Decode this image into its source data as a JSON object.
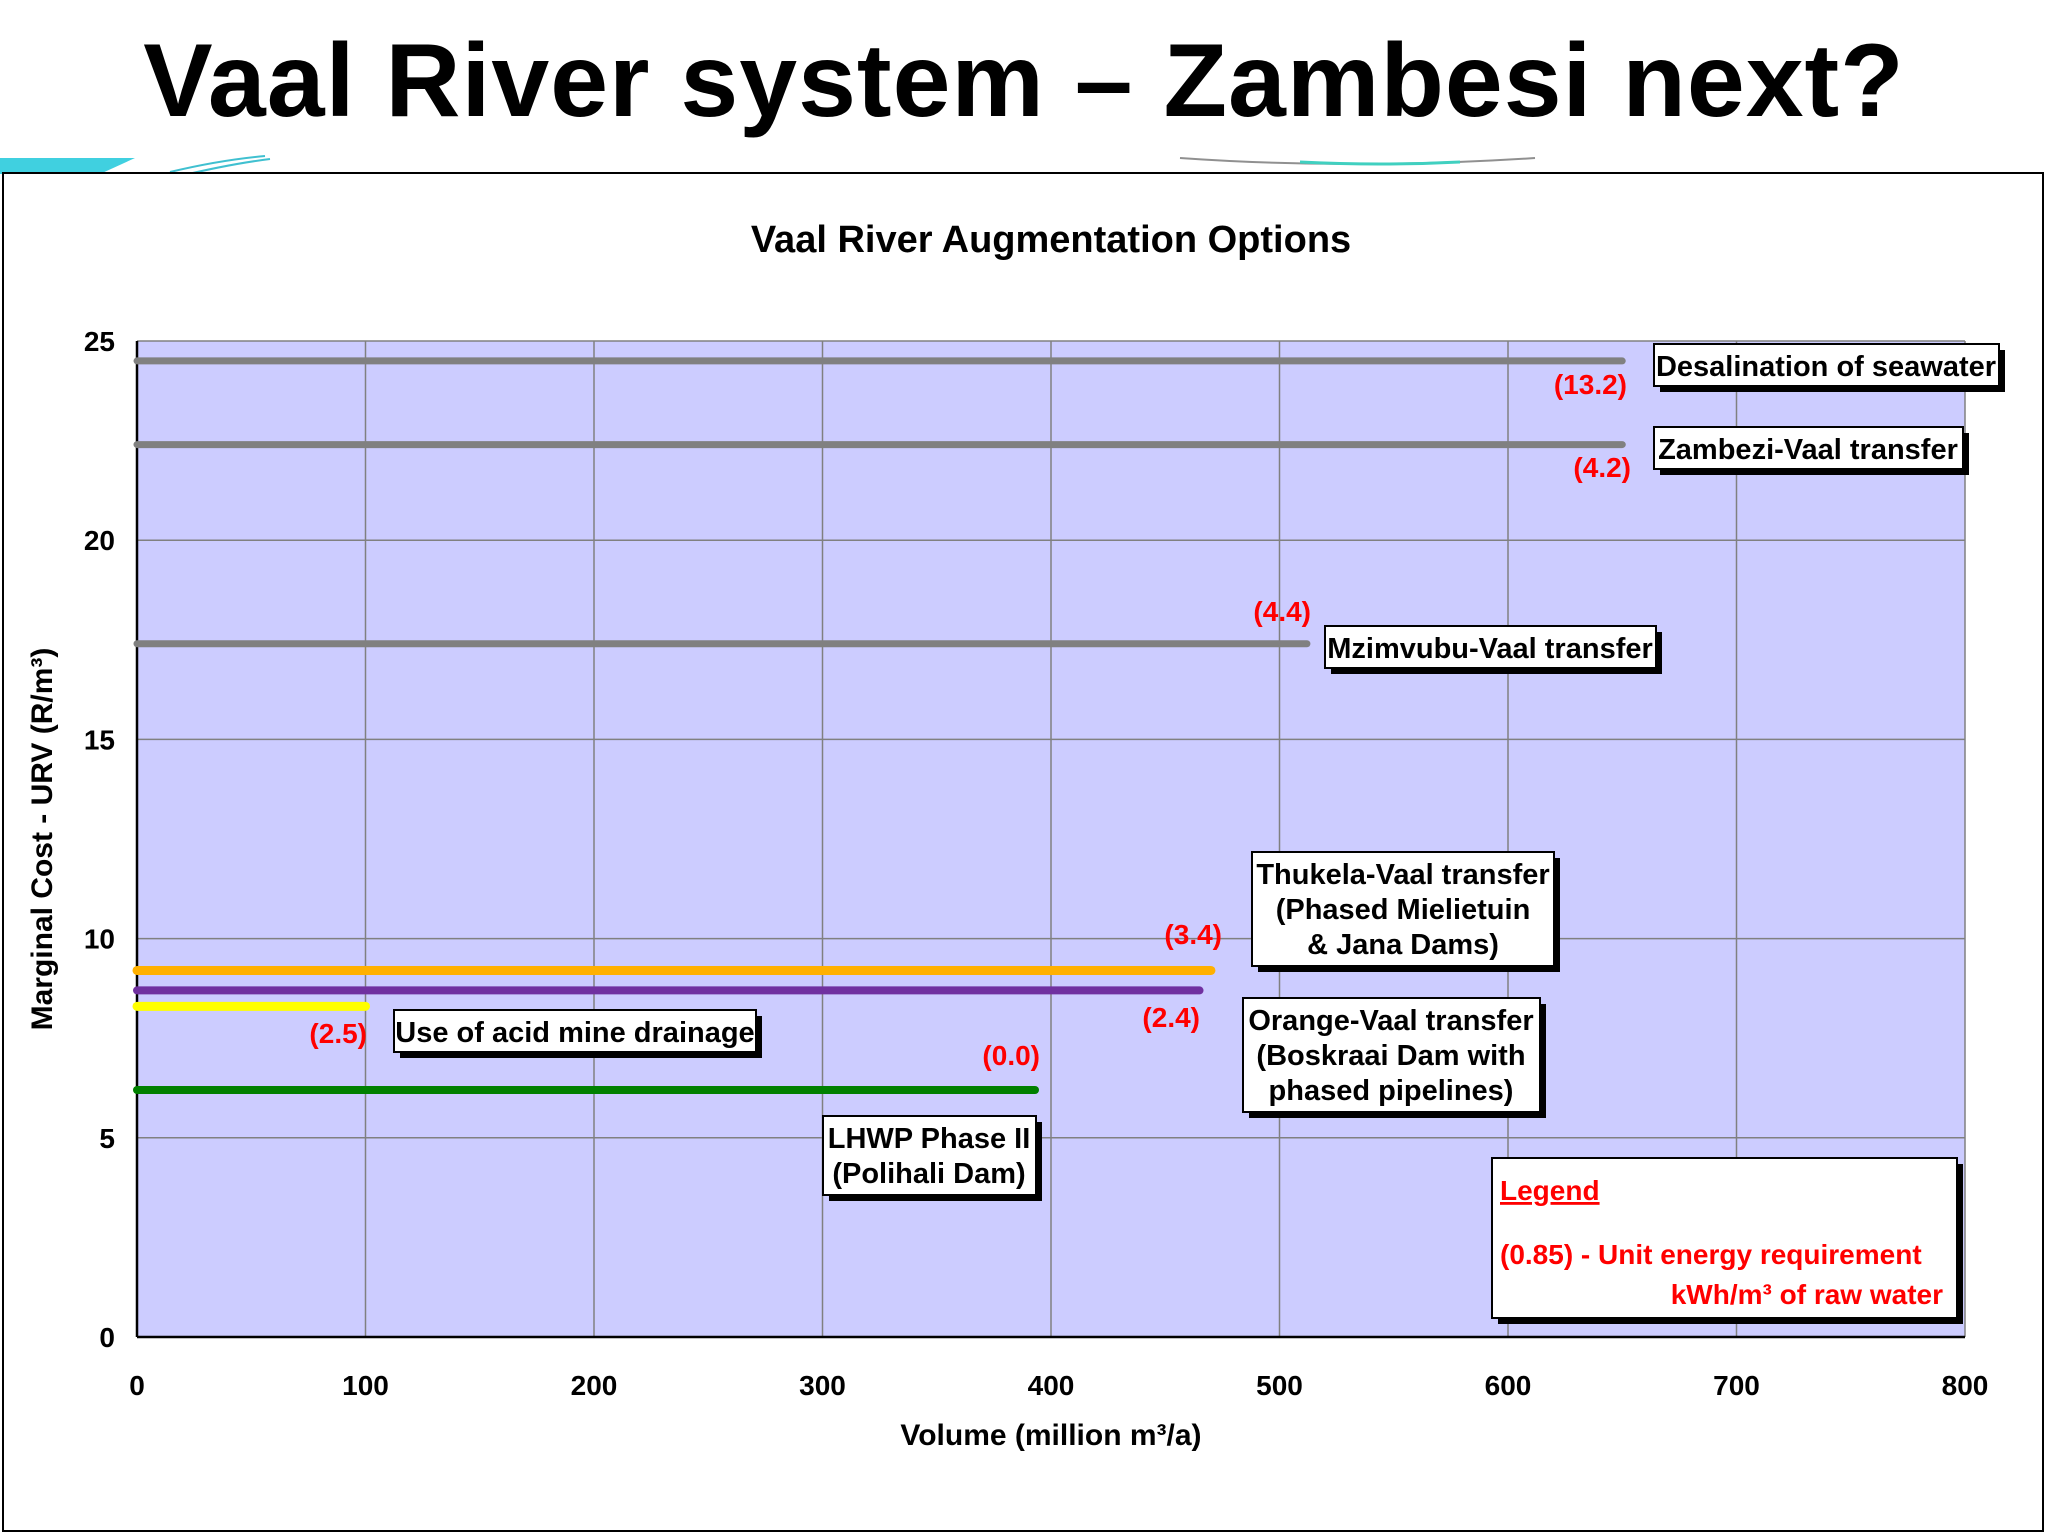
{
  "slide": {
    "title": "Vaal River system – Zambesi next?"
  },
  "colors": {
    "plot_bg": "#ccccff",
    "grid": "#808080",
    "annotation": "#ff0000",
    "decor": "#40d0e0"
  },
  "chart_data": {
    "type": "line",
    "title": "Vaal River Augmentation Options",
    "xlabel": "Volume (million m³/a)",
    "ylabel": "Marginal Cost - URV (R/m³)",
    "xlim": [
      0,
      800
    ],
    "ylim": [
      0,
      25
    ],
    "xticks": [
      0,
      100,
      200,
      300,
      400,
      500,
      600,
      700,
      800
    ],
    "yticks": [
      0,
      5,
      10,
      15,
      20,
      25
    ],
    "grid": true,
    "series": [
      {
        "name": "Desalination of seawater",
        "x": [
          0,
          650
        ],
        "y": [
          24.5,
          24.5
        ],
        "energy": "(13.2)",
        "color": "#808080"
      },
      {
        "name": "Zambezi-Vaal transfer",
        "x": [
          0,
          650
        ],
        "y": [
          22.4,
          22.4
        ],
        "energy": "(4.2)",
        "color": "#808080"
      },
      {
        "name": "Mzimvubu-Vaal transfer",
        "x": [
          0,
          512
        ],
        "y": [
          17.4,
          17.4
        ],
        "energy": "(4.4)",
        "color": "#808080"
      },
      {
        "name": "Thukela-Vaal transfer (Phased Mielietuin & Jana Dams)",
        "label_lines": [
          "Thukela-Vaal transfer",
          "(Phased Mielietuin",
          "& Jana Dams)"
        ],
        "x": [
          0,
          470
        ],
        "y": [
          9.2,
          9.2
        ],
        "energy": "(3.4)",
        "color": "#ffb000"
      },
      {
        "name": "Orange-Vaal transfer (Boskraai Dam with phased pipelines)",
        "label_lines": [
          "Orange-Vaal transfer",
          "(Boskraai Dam with",
          "phased pipelines)"
        ],
        "x": [
          0,
          465
        ],
        "y": [
          8.7,
          8.7
        ],
        "energy": "(2.4)",
        "color": "#7030a0"
      },
      {
        "name": "Use of acid mine drainage",
        "x": [
          0,
          100
        ],
        "y": [
          8.3,
          8.3
        ],
        "energy": "(2.5)",
        "color": "#ffff00"
      },
      {
        "name": "LHWP Phase II (Polihali Dam)",
        "label_lines": [
          "LHWP Phase II",
          "(Polihali Dam)"
        ],
        "x": [
          0,
          393
        ],
        "y": [
          6.2,
          6.2
        ],
        "energy": "(0.0)",
        "color": "#008000"
      }
    ],
    "legend": {
      "title": "Legend",
      "line1": "(0.85) - Unit energy requirement",
      "line2": "kWh/m³ of raw water",
      "position": "bottom-right"
    }
  }
}
